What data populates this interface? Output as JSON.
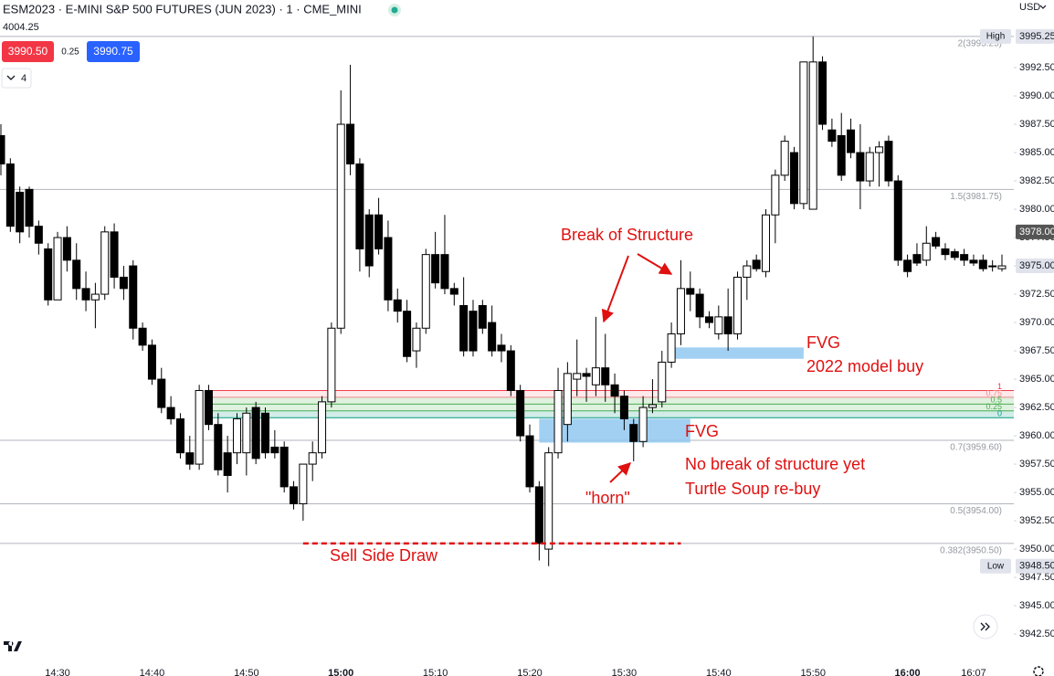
{
  "chart_data": {
    "type": "candlestick",
    "title": "ESM2023 · E-MINI S&P 500 FUTURES (JUN 2023) · 1 · CME_MINI",
    "toolbar": {
      "reference_price": "4004.25",
      "sell": "3990.50",
      "spread": "0.25",
      "buy": "3990.75",
      "indicator_count": "4",
      "currency": "USD"
    },
    "x": [
      "14:24",
      "14:25",
      "14:26",
      "14:27",
      "14:28",
      "14:29",
      "14:30",
      "14:31",
      "14:32",
      "14:33",
      "14:34",
      "14:35",
      "14:36",
      "14:37",
      "14:38",
      "14:39",
      "14:40",
      "14:41",
      "14:42",
      "14:43",
      "14:44",
      "14:45",
      "14:46",
      "14:47",
      "14:48",
      "14:49",
      "14:50",
      "14:51",
      "14:52",
      "14:53",
      "14:54",
      "14:55",
      "14:56",
      "14:57",
      "14:58",
      "14:59",
      "15:00",
      "15:01",
      "15:02",
      "15:03",
      "15:04",
      "15:05",
      "15:06",
      "15:07",
      "15:08",
      "15:09",
      "15:10",
      "15:11",
      "15:12",
      "15:13",
      "15:14",
      "15:15",
      "15:16",
      "15:17",
      "15:18",
      "15:19",
      "15:20",
      "15:21",
      "15:22",
      "15:23",
      "15:24",
      "15:25",
      "15:26",
      "15:27",
      "15:28",
      "15:29",
      "15:30",
      "15:31",
      "15:32",
      "15:33",
      "15:34",
      "15:35",
      "15:36",
      "15:37",
      "15:38",
      "15:39",
      "15:40",
      "15:41",
      "15:42",
      "15:43",
      "15:44",
      "15:45",
      "15:46",
      "15:47",
      "15:48",
      "15:49",
      "15:50",
      "15:51",
      "15:52",
      "15:53",
      "15:54",
      "15:55",
      "15:56",
      "15:57",
      "15:58",
      "15:59",
      "16:00",
      "16:01",
      "16:02",
      "16:03",
      "16:04",
      "16:05",
      "16:06",
      "16:07",
      "16:08",
      "16:09",
      "16:10"
    ],
    "open": [
      3986.5,
      3984,
      3981.5,
      3981.75,
      3978.5,
      3976.5,
      3972,
      3977.5,
      3975.5,
      3973,
      3972,
      3972.5,
      3978,
      3974,
      3975,
      3969.5,
      3968,
      3965,
      3962.5,
      3961.5,
      3958.5,
      3957.5,
      3964,
      3961,
      3958.5,
      3958.5,
      3958.5,
      3962.5,
      3962,
      3959,
      3959,
      3955.5,
      3954,
      3957.5,
      3958.5,
      3963,
      3969.5,
      3987.5,
      3984,
      3979.5,
      3979.5,
      3977.5,
      3972,
      3971,
      3967.5,
      3969.5,
      3976,
      3976,
      3973,
      3971.5,
      3971,
      3971.5,
      3970,
      3968,
      3967.5,
      3964,
      3960,
      3955.5,
      3950,
      3958.5,
      3961,
      3965,
      3965.5,
      3964.5,
      3966,
      3964.5,
      3963.5,
      3961,
      3959.5,
      3962.5,
      3963,
      3966.5,
      3969,
      3973,
      3972.5,
      3970.5,
      3969,
      3970.5,
      3969,
      3974,
      3975.5,
      3974.5,
      3979.5,
      3983,
      3985,
      3980.5,
      3980,
      3993,
      3987,
      3986.5,
      3987,
      3985,
      3982.5,
      3985,
      3986,
      3982.5,
      3975.5,
      3976,
      3975.5,
      3977.5,
      3976.5,
      3976.25,
      3976,
      3975.5,
      3975.5,
      3975,
      3974.75
    ],
    "high": [
      3987.5,
      3984.5,
      3982,
      3982,
      3979,
      3977,
      3978,
      3978.5,
      3977,
      3974.5,
      3973.5,
      3978.5,
      3978.75,
      3975,
      3975.5,
      3970,
      3968.5,
      3966,
      3963.5,
      3962,
      3960,
      3964.5,
      3964.5,
      3962,
      3960,
      3962,
      3962.5,
      3963,
      3962.5,
      3960.5,
      3959.5,
      3956,
      3957.5,
      3959.5,
      3963.5,
      3970,
      3990.5,
      3992.75,
      3984.5,
      3980,
      3981,
      3979,
      3973,
      3972,
      3970,
      3976.5,
      3978,
      3979.5,
      3973.5,
      3974,
      3972,
      3972,
      3971.5,
      3969,
      3968,
      3964.5,
      3961,
      3956,
      3959,
      3966,
      3966.5,
      3968.5,
      3966,
      3970.5,
      3969,
      3965.5,
      3964,
      3961.5,
      3963.5,
      3965,
      3967.5,
      3970,
      3975.5,
      3974.5,
      3973,
      3971,
      3971.5,
      3973,
      3974.5,
      3975.5,
      3976,
      3980,
      3983.5,
      3986.5,
      3985.5,
      3993,
      3995.25,
      3993.5,
      3988,
      3988.5,
      3988,
      3987.5,
      3985.5,
      3986,
      3986.5,
      3983,
      3976,
      3977,
      3978.5,
      3978,
      3977,
      3976.5,
      3976.5,
      3976,
      3976,
      3975.5,
      3976
    ],
    "low": [
      3983,
      3978,
      3977,
      3977.5,
      3976,
      3971.5,
      3972,
      3974.5,
      3972,
      3971,
      3969.5,
      3972,
      3973,
      3972,
      3968.5,
      3967.5,
      3964.5,
      3962,
      3961,
      3958,
      3957,
      3957,
      3960.5,
      3956.5,
      3955,
      3957.5,
      3956.5,
      3957.5,
      3958,
      3958,
      3955,
      3953.5,
      3952.5,
      3956,
      3958,
      3962.5,
      3969,
      3983,
      3974.5,
      3974,
      3976,
      3971,
      3970,
      3966.5,
      3966,
      3969,
      3973,
      3972.5,
      3971.5,
      3967,
      3967,
      3969,
      3967,
      3966.5,
      3963.5,
      3959.5,
      3955,
      3949,
      3948.5,
      3958,
      3959.5,
      3963.5,
      3963,
      3963.5,
      3963,
      3962,
      3960.5,
      3957.75,
      3959,
      3962,
      3962.5,
      3966,
      3968,
      3971,
      3969.5,
      3969.5,
      3968.5,
      3967.5,
      3968.5,
      3972,
      3974.5,
      3974,
      3977,
      3982.5,
      3980,
      3980,
      3980,
      3987,
      3985.5,
      3982.5,
      3984.5,
      3980,
      3982,
      3982,
      3982,
      3975,
      3974,
      3975,
      3975,
      3976.5,
      3975.5,
      3975.5,
      3975,
      3975,
      3974.5,
      3974.5,
      3974.5
    ],
    "close": [
      3984,
      3978.5,
      3978,
      3978.5,
      3977,
      3972,
      3977.5,
      3975.5,
      3973,
      3972,
      3972.5,
      3978,
      3974,
      3973,
      3969.5,
      3968,
      3965,
      3962.5,
      3961.5,
      3958.5,
      3957.5,
      3964,
      3961,
      3957,
      3956.5,
      3961.5,
      3962,
      3958,
      3958.5,
      3958.5,
      3955.5,
      3954,
      3957.5,
      3958.5,
      3963,
      3969.5,
      3987.5,
      3984,
      3976.5,
      3975,
      3976.5,
      3972,
      3971,
      3967,
      3969.5,
      3976,
      3973.5,
      3973,
      3972.5,
      3967.5,
      3967.5,
      3969.5,
      3967.5,
      3967.5,
      3964,
      3960,
      3955.5,
      3950.5,
      3958.5,
      3964,
      3965.5,
      3965.5,
      3965.25,
      3966,
      3964.5,
      3963.5,
      3961.5,
      3959.5,
      3962.5,
      3962.75,
      3966.5,
      3969,
      3973,
      3972.5,
      3970.5,
      3970,
      3970.5,
      3969,
      3974,
      3975,
      3974.75,
      3979.5,
      3983,
      3986,
      3980.5,
      3993,
      3993,
      3987.5,
      3986,
      3983,
      3985,
      3982.5,
      3985,
      3985.5,
      3982.5,
      3975.5,
      3974.5,
      3975.25,
      3977,
      3976.75,
      3976,
      3975.75,
      3975.5,
      3975.25,
      3974.75,
      3975,
      3975
    ],
    "up_color": "#ffffff",
    "down_color": "#000000",
    "wick_color": "#000000",
    "xlim": [
      "14:24",
      "16:10"
    ],
    "xticks": [
      "14:30",
      "14:40",
      "14:50",
      "15:00",
      "15:10",
      "15:20",
      "15:30",
      "15:40",
      "15:50",
      "16:00",
      "16:07"
    ],
    "ylim": [
      3940.25,
      3996.05
    ],
    "yticks": [
      {
        "value": 3942.5,
        "label": "3942.50"
      },
      {
        "value": 3945,
        "label": "3945.00"
      },
      {
        "value": 3947.5,
        "label": "3947.50"
      },
      {
        "value": 3950,
        "label": "3950.00"
      },
      {
        "value": 3952.5,
        "label": "3952.50"
      },
      {
        "value": 3955,
        "label": "3955.00"
      },
      {
        "value": 3957.5,
        "label": "3957.50"
      },
      {
        "value": 3960,
        "label": "3960.00"
      },
      {
        "value": 3962.5,
        "label": "3962.50"
      },
      {
        "value": 3965,
        "label": "3965.00"
      },
      {
        "value": 3967.5,
        "label": "3967.50"
      },
      {
        "value": 3970,
        "label": "3970.00"
      },
      {
        "value": 3972.5,
        "label": "3972.50"
      },
      {
        "value": 3975,
        "label": "3975.00"
      },
      {
        "value": 3977.5,
        "label": "3977.50"
      },
      {
        "value": 3980,
        "label": "3980.00"
      },
      {
        "value": 3982.5,
        "label": "3982.50"
      },
      {
        "value": 3985,
        "label": "3985.00"
      },
      {
        "value": 3987.5,
        "label": "3987.50"
      },
      {
        "value": 3990,
        "label": "3990.00"
      },
      {
        "value": 3992.5,
        "label": "3992.50"
      }
    ],
    "grid": false,
    "price_badges": [
      {
        "value": 3995.25,
        "label": "3995.25",
        "tag": "High",
        "color": "#e0e3eb",
        "text_color": "#131722"
      },
      {
        "value": 3978,
        "label": "3978.00",
        "color": "#555555",
        "text_color": "#ffffff"
      },
      {
        "value": 3975,
        "label": "3975.00",
        "color": "#e0e3eb",
        "text_color": "#131722"
      },
      {
        "value": 3948.5,
        "label": "3948.50",
        "tag": "Low",
        "color": "#e0e3eb",
        "text_color": "#131722"
      }
    ],
    "levels": [
      {
        "value": 3995.25,
        "label": "2(3995.25)"
      },
      {
        "value": 3981.75,
        "label": "1.5(3981.75)"
      },
      {
        "value": 3959.6,
        "label": "0.7(3959.60)"
      },
      {
        "value": 3954,
        "label": "0.5(3954.00)"
      },
      {
        "value": 3950.5,
        "label": "0.382(3950.50)"
      }
    ],
    "fib_zone": {
      "from": "14:46",
      "levels": [
        {
          "ratio": 1,
          "price": 3964,
          "color": "#f23645"
        },
        {
          "ratio": 0.75,
          "price": 3963.4,
          "color": "#f7868f"
        },
        {
          "ratio": 0.5,
          "price": 3962.8,
          "color": "#4caf50"
        },
        {
          "ratio": 0.25,
          "price": 3962.2,
          "color": "#4caf50"
        },
        {
          "ratio": 0,
          "price": 3961.6,
          "color": "#089981"
        }
      ]
    },
    "zones": [
      {
        "from": "15:21",
        "to": "15:37",
        "low": 3959.4,
        "high": 3961.5,
        "color": "#90c8f0"
      },
      {
        "from": "15:35",
        "to": "15:49",
        "low": 3966.8,
        "high": 3967.8,
        "color": "#90c8f0"
      }
    ],
    "lines": [
      {
        "from": "14:56",
        "to": "15:36",
        "value": 3950.5,
        "color": "#e01010",
        "dashed": true
      }
    ],
    "annotations": [
      "Break of Structure",
      "FVG",
      "2022 model buy",
      "FVG",
      "No break of structure yet",
      "Turtle Soup re-buy",
      "\"horn\"",
      "Sell Side Draw"
    ]
  }
}
